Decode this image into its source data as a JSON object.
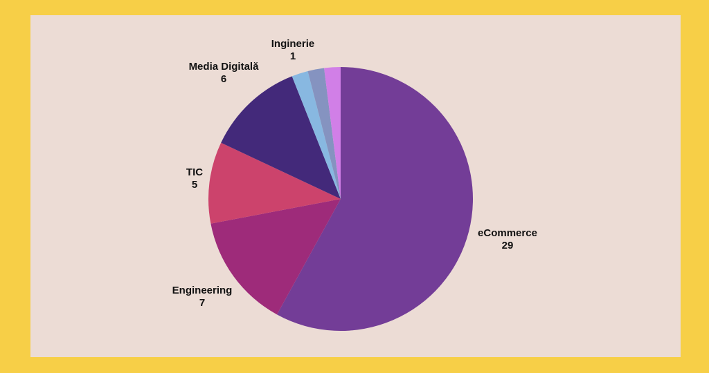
{
  "colors": {
    "outer_background": "#f7cf47",
    "panel_background": "#ecdcd5",
    "label_text": "#111111"
  },
  "chart_data": {
    "type": "pie",
    "title": "",
    "start_angle_deg": 0,
    "direction": "clockwise",
    "slices": [
      {
        "label": "eCommerce",
        "value": 29,
        "color": "#733d97"
      },
      {
        "label": "Engineering",
        "value": 7,
        "color": "#9e2b7a"
      },
      {
        "label": "TIC",
        "value": 5,
        "color": "#cc436c"
      },
      {
        "label": "Media Digitală",
        "value": 6,
        "color": "#43297a"
      },
      {
        "label": "",
        "value": 1,
        "color": "#88b8e1"
      },
      {
        "label": "",
        "value": 1,
        "color": "#8593c0"
      },
      {
        "label": "Inginerie",
        "value": 1,
        "color": "#d17fe7"
      }
    ]
  }
}
